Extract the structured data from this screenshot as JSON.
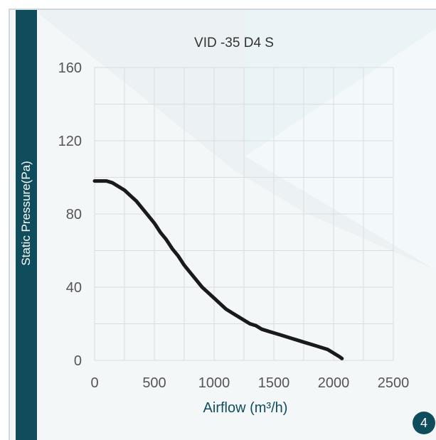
{
  "sidebar": {
    "label": "Static Pressure(Pa)"
  },
  "page_number": "4",
  "colors": {
    "accent": "#0f4d5c",
    "curve": "#1a1a1a",
    "grid": "#d9dde0"
  },
  "chart_data": {
    "type": "line",
    "title": "VID -35 D4 S",
    "xlabel": "Airflow (m³/h)",
    "ylabel": "Static Pressure(Pa)",
    "xlim": [
      0,
      2500
    ],
    "ylim": [
      0,
      160
    ],
    "xticks": [
      "0",
      "500",
      "1000",
      "1500",
      "2000",
      "2500"
    ],
    "yticks": [
      "0",
      "40",
      "80",
      "120",
      "160"
    ],
    "grid": true,
    "series": [
      {
        "x": [
          0,
          50,
          100,
          150,
          200,
          250,
          300,
          350,
          400,
          450,
          500,
          550,
          600,
          650,
          700,
          750,
          800,
          850,
          900,
          950,
          1000,
          1050,
          1100,
          1150,
          1200,
          1250,
          1300,
          1350,
          1400,
          1450,
          1500,
          1550,
          1600,
          1650,
          1700,
          1750,
          1800,
          1850,
          1900,
          1950,
          2000,
          2050,
          2070
        ],
        "y": [
          98,
          98,
          98,
          97,
          95,
          93,
          90,
          87,
          83,
          79,
          75,
          70,
          66,
          61,
          57,
          52,
          48,
          44,
          40,
          37,
          34,
          31,
          28,
          26,
          24,
          22,
          20,
          19,
          17,
          16,
          15,
          14,
          13,
          12,
          11,
          10,
          9,
          8,
          7,
          6,
          4,
          2,
          1
        ]
      }
    ]
  }
}
